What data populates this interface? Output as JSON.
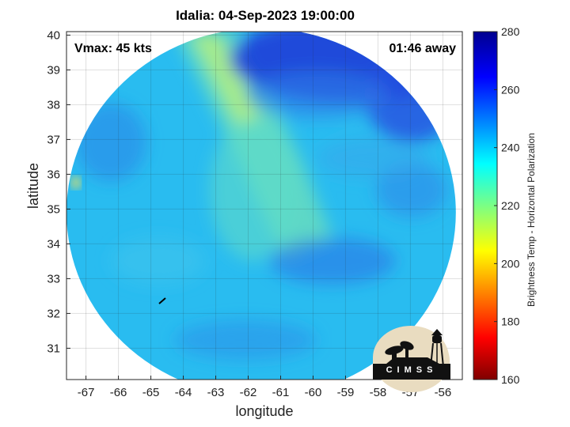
{
  "title": "Idalia: 04-Sep-2023 19:00:00",
  "vmax_label": "Vmax: 45 kts",
  "time_label": "01:46 away",
  "xlabel": "longitude",
  "ylabel": "latitude",
  "colorbar_label": "Brightness Temp - Horizontal Polarization",
  "logo_text": "CIMSS",
  "chart_data": {
    "type": "heatmap",
    "title": "Idalia: 04-Sep-2023 19:00:00",
    "xlabel": "longitude",
    "ylabel": "latitude",
    "xlim": [
      -67.6,
      -55.4
    ],
    "ylim": [
      30.1,
      40.1
    ],
    "xticks": [
      -67,
      -66,
      -65,
      -64,
      -63,
      -62,
      -61,
      -60,
      -59,
      -58,
      -57,
      -56
    ],
    "yticks": [
      31,
      32,
      33,
      34,
      35,
      36,
      37,
      38,
      39,
      40
    ],
    "grid": true,
    "colorbar": {
      "label": "Brightness Temp - Horizontal Polarization",
      "range": [
        160,
        280
      ],
      "ticks": [
        160,
        180,
        200,
        220,
        240,
        260,
        280
      ],
      "colormap": "jet"
    },
    "swath": {
      "center_lon": -61.6,
      "center_lat": 34.9,
      "radius_lon": 6.0,
      "radius_lat": 5.3
    },
    "typical_value_range": [
      225,
      270
    ]
  }
}
